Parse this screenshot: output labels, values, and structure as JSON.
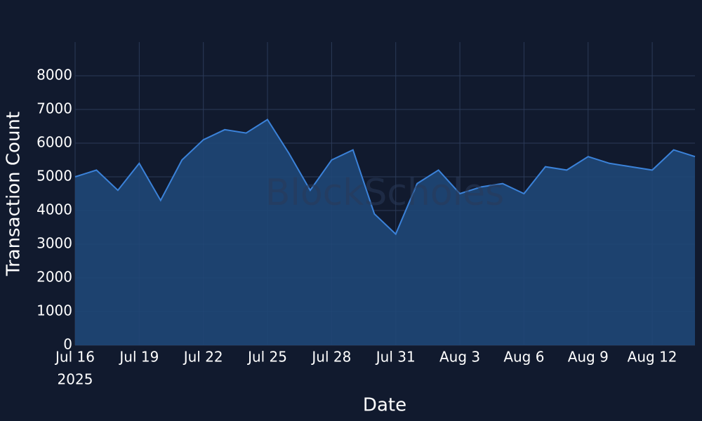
{
  "chart_data": {
    "type": "area",
    "watermark": "BlockScholes",
    "x_label": "Date",
    "y_label": "Transaction Count",
    "x_year": "2025",
    "color": "#3b82d9",
    "fill_color": "#1f4777",
    "grid": true,
    "x": [
      "2025-07-16",
      "2025-07-17",
      "2025-07-18",
      "2025-07-19",
      "2025-07-20",
      "2025-07-21",
      "2025-07-22",
      "2025-07-23",
      "2025-07-24",
      "2025-07-25",
      "2025-07-26",
      "2025-07-27",
      "2025-07-28",
      "2025-07-29",
      "2025-07-30",
      "2025-07-31",
      "2025-08-01",
      "2025-08-02",
      "2025-08-03",
      "2025-08-04",
      "2025-08-05",
      "2025-08-06",
      "2025-08-07",
      "2025-08-08",
      "2025-08-09",
      "2025-08-10",
      "2025-08-11",
      "2025-08-12",
      "2025-08-13",
      "2025-08-14"
    ],
    "values": [
      5000,
      5200,
      4600,
      5400,
      4300,
      5500,
      6100,
      6400,
      6300,
      6700,
      5700,
      4600,
      5500,
      5800,
      3900,
      3300,
      4800,
      5200,
      4500,
      4700,
      4800,
      4500,
      5300,
      5200,
      5600,
      5400,
      5300,
      5200,
      5800,
      5600
    ],
    "xlim": [
      "2025-07-16",
      "2025-08-14"
    ],
    "xticks": [
      {
        "value": "2025-07-16",
        "label": "Jul 16"
      },
      {
        "value": "2025-07-19",
        "label": "Jul 19"
      },
      {
        "value": "2025-07-22",
        "label": "Jul 22"
      },
      {
        "value": "2025-07-25",
        "label": "Jul 25"
      },
      {
        "value": "2025-07-28",
        "label": "Jul 28"
      },
      {
        "value": "2025-07-31",
        "label": "Jul 31"
      },
      {
        "value": "2025-08-03",
        "label": "Aug 3"
      },
      {
        "value": "2025-08-06",
        "label": "Aug 6"
      },
      {
        "value": "2025-08-09",
        "label": "Aug 9"
      },
      {
        "value": "2025-08-12",
        "label": "Aug 12"
      }
    ],
    "ylim": [
      0,
      9000
    ],
    "yticks": [
      0,
      1000,
      2000,
      3000,
      4000,
      5000,
      6000,
      7000,
      8000
    ]
  }
}
